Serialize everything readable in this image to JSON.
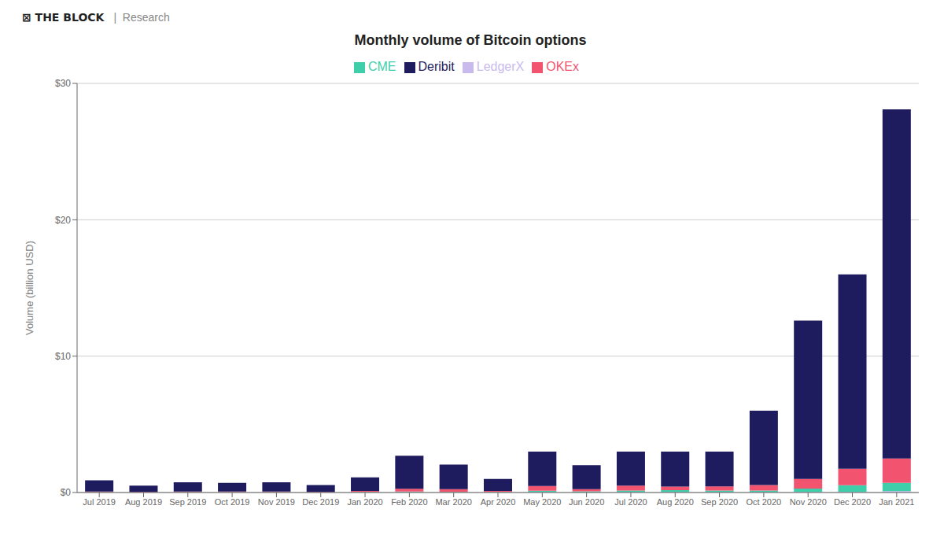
{
  "chart_data": {
    "type": "bar",
    "title": "Monthly volume of Bitcoin options",
    "annotations": [
      "⊠ THE BLOCK",
      "|  Research"
    ],
    "ylabel": "Volume (billion USD)",
    "categories": [
      "Jul 2019",
      "Aug 2019",
      "Sep 2019",
      "Oct 2019",
      "Nov 2019",
      "Dec 2019",
      "Jan 2020",
      "Feb 2020",
      "Mar 2020",
      "Apr 2020",
      "May 2020",
      "Jun 2020",
      "Jul 2020",
      "Aug 2020",
      "Sep 2020",
      "Oct 2020",
      "Nov 2020",
      "Dec 2020",
      "Jan 2021"
    ],
    "series": [
      {
        "name": "LedgerX",
        "color": "#c9baee",
        "values": [
          0.02,
          0.01,
          0.02,
          0.02,
          0.02,
          0.01,
          0.02,
          0.03,
          0.02,
          0.02,
          0.03,
          0.02,
          0.03,
          0.03,
          0.03,
          0.03,
          0.04,
          0.04,
          0.1
        ]
      },
      {
        "name": "CME",
        "color": "#3ecfaa",
        "values": [
          0.01,
          0.01,
          0.01,
          0.01,
          0.01,
          0.01,
          0.02,
          0.04,
          0.03,
          0.02,
          0.1,
          0.07,
          0.12,
          0.15,
          0.12,
          0.12,
          0.25,
          0.5,
          0.6
        ]
      },
      {
        "name": "OKEx",
        "color": "#f25470",
        "values": [
          0.04,
          0.02,
          0.04,
          0.04,
          0.04,
          0.02,
          0.07,
          0.2,
          0.2,
          0.08,
          0.35,
          0.15,
          0.35,
          0.25,
          0.3,
          0.4,
          0.7,
          1.2,
          1.8
        ]
      },
      {
        "name": "Deribit",
        "color": "#1e1b5e",
        "values": [
          0.83,
          0.46,
          0.68,
          0.63,
          0.68,
          0.51,
          1.0,
          2.43,
          1.8,
          0.88,
          2.52,
          1.76,
          2.5,
          2.57,
          2.55,
          5.45,
          11.61,
          14.26,
          25.6
        ]
      }
    ],
    "stacked": true,
    "ylim": [
      0,
      30
    ],
    "yticks": [
      {
        "value": 0,
        "label": "$0"
      },
      {
        "value": 10,
        "label": "$10"
      },
      {
        "value": 20,
        "label": "$20"
      },
      {
        "value": 30,
        "label": "$30"
      }
    ],
    "grid": true,
    "legend": "top"
  }
}
